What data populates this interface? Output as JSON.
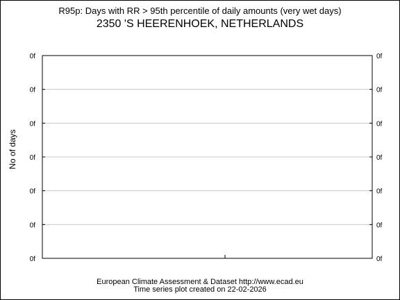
{
  "chart_data": {
    "type": "line",
    "title": "R95p: Days with RR > 95th percentile of daily amounts (very wet days)",
    "subtitle": "2350 'S HEERENHOEK, NETHERLANDS",
    "ylabel": "No of days",
    "xlabel": "",
    "y_tick_labels": [
      "0f",
      "0f",
      "0f",
      "0f",
      "0f",
      "0f",
      "0f"
    ],
    "series": [],
    "grid": true
  },
  "footer": {
    "line1": "European Climate Assessment & Dataset  http://www.ecad.eu",
    "line2": "Time series plot created on 22-02-2026"
  }
}
